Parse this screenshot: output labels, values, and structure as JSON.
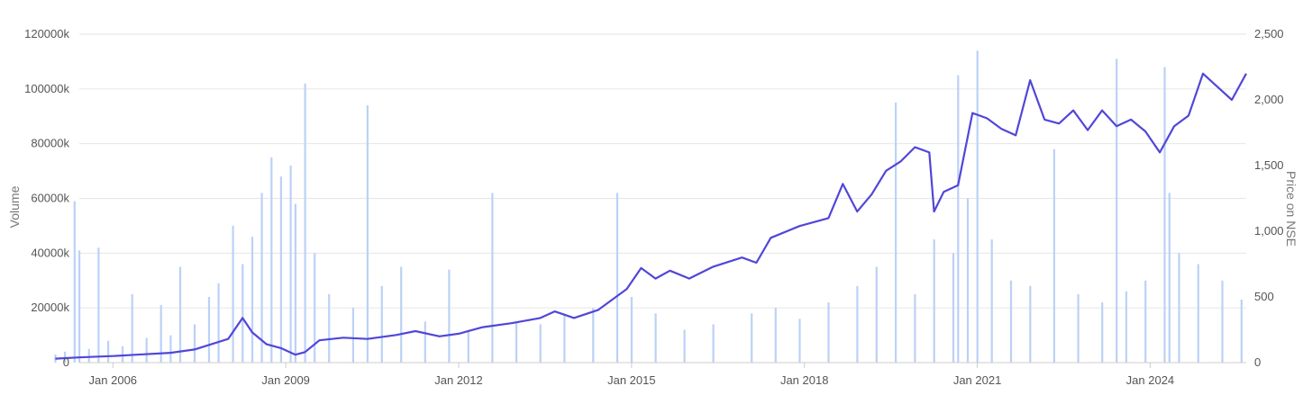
{
  "chart_data": {
    "type": "bar+line",
    "title": "",
    "grid": true,
    "legend": "none",
    "colors": {
      "volume": "#bcd1f7",
      "price": "#5146d8",
      "grid": "#e6e6e6",
      "axis": "#cccccc"
    },
    "x_axis": {
      "range": [
        "2005-01",
        "2025-12"
      ],
      "tick_labels": [
        "Jan 2006",
        "Jan 2009",
        "Jan 2012",
        "Jan 2015",
        "Jan 2018",
        "Jan 2021",
        "Jan 2024"
      ],
      "tick_dates": [
        "2006-01",
        "2009-01",
        "2012-01",
        "2015-01",
        "2018-01",
        "2021-01",
        "2024-01"
      ]
    },
    "y_left": {
      "label": "Volume",
      "ylim": [
        0,
        120000
      ],
      "tick_values": [
        0,
        20000,
        40000,
        60000,
        80000,
        100000,
        120000
      ],
      "tick_labels": [
        "0",
        "20000k",
        "40000k",
        "60000k",
        "80000k",
        "100000k",
        "120000k"
      ]
    },
    "y_right": {
      "label": "Price on NSE",
      "ylim": [
        0,
        2500
      ],
      "tick_values": [
        0,
        500,
        1000,
        1500,
        2000,
        2500
      ],
      "tick_labels": [
        "0",
        "500",
        "1,000",
        "1,500",
        "2,000",
        "2,500"
      ]
    },
    "series": [
      {
        "name": "Volume",
        "type": "bar",
        "unit": "thousands",
        "points": [
          [
            "2005-01",
            3000
          ],
          [
            "2005-03",
            4000
          ],
          [
            "2005-05",
            59000
          ],
          [
            "2005-06",
            41000
          ],
          [
            "2005-08",
            5000
          ],
          [
            "2005-10",
            42000
          ],
          [
            "2005-12",
            8000
          ],
          [
            "2006-03",
            6000
          ],
          [
            "2006-05",
            25000
          ],
          [
            "2006-08",
            9000
          ],
          [
            "2006-11",
            21000
          ],
          [
            "2007-01",
            10000
          ],
          [
            "2007-03",
            35000
          ],
          [
            "2007-06",
            14000
          ],
          [
            "2007-09",
            24000
          ],
          [
            "2007-11",
            29000
          ],
          [
            "2008-02",
            50000
          ],
          [
            "2008-04",
            36000
          ],
          [
            "2008-06",
            46000
          ],
          [
            "2008-08",
            62000
          ],
          [
            "2008-10",
            75000
          ],
          [
            "2008-12",
            68000
          ],
          [
            "2009-02",
            72000
          ],
          [
            "2009-03",
            58000
          ],
          [
            "2009-05",
            102000
          ],
          [
            "2009-07",
            40000
          ],
          [
            "2009-10",
            25000
          ],
          [
            "2010-03",
            20000
          ],
          [
            "2010-06",
            94000
          ],
          [
            "2010-09",
            28000
          ],
          [
            "2011-01",
            35000
          ],
          [
            "2011-06",
            15000
          ],
          [
            "2011-11",
            34000
          ],
          [
            "2012-03",
            12000
          ],
          [
            "2012-08",
            62000
          ],
          [
            "2013-01",
            15000
          ],
          [
            "2013-06",
            14000
          ],
          [
            "2013-11",
            18000
          ],
          [
            "2014-05",
            20000
          ],
          [
            "2014-10",
            62000
          ],
          [
            "2015-01",
            24000
          ],
          [
            "2015-06",
            18000
          ],
          [
            "2015-12",
            12000
          ],
          [
            "2016-06",
            14000
          ],
          [
            "2017-02",
            18000
          ],
          [
            "2017-07",
            20000
          ],
          [
            "2017-12",
            16000
          ],
          [
            "2018-06",
            22000
          ],
          [
            "2018-12",
            28000
          ],
          [
            "2019-04",
            35000
          ],
          [
            "2019-08",
            95000
          ],
          [
            "2019-12",
            25000
          ],
          [
            "2020-04",
            45000
          ],
          [
            "2020-08",
            40000
          ],
          [
            "2020-09",
            105000
          ],
          [
            "2020-11",
            60000
          ],
          [
            "2021-01",
            114000
          ],
          [
            "2021-04",
            45000
          ],
          [
            "2021-08",
            30000
          ],
          [
            "2021-12",
            28000
          ],
          [
            "2022-05",
            78000
          ],
          [
            "2022-10",
            25000
          ],
          [
            "2023-03",
            22000
          ],
          [
            "2023-06",
            111000
          ],
          [
            "2023-08",
            26000
          ],
          [
            "2023-12",
            30000
          ],
          [
            "2024-04",
            108000
          ],
          [
            "2024-05",
            62000
          ],
          [
            "2024-07",
            40000
          ],
          [
            "2024-11",
            36000
          ],
          [
            "2025-04",
            30000
          ],
          [
            "2025-08",
            23000
          ]
        ]
      },
      {
        "name": "Price on NSE",
        "type": "line",
        "points": [
          [
            "2005-01",
            30
          ],
          [
            "2005-06",
            40
          ],
          [
            "2006-01",
            50
          ],
          [
            "2006-06",
            60
          ],
          [
            "2007-01",
            75
          ],
          [
            "2007-06",
            100
          ],
          [
            "2008-01",
            180
          ],
          [
            "2008-04",
            340
          ],
          [
            "2008-06",
            230
          ],
          [
            "2008-09",
            140
          ],
          [
            "2008-12",
            110
          ],
          [
            "2009-03",
            60
          ],
          [
            "2009-05",
            80
          ],
          [
            "2009-08",
            170
          ],
          [
            "2010-01",
            190
          ],
          [
            "2010-06",
            180
          ],
          [
            "2010-12",
            210
          ],
          [
            "2011-04",
            240
          ],
          [
            "2011-09",
            200
          ],
          [
            "2012-01",
            220
          ],
          [
            "2012-06",
            270
          ],
          [
            "2012-12",
            300
          ],
          [
            "2013-06",
            340
          ],
          [
            "2013-09",
            390
          ],
          [
            "2014-01",
            340
          ],
          [
            "2014-06",
            400
          ],
          [
            "2014-12",
            560
          ],
          [
            "2015-03",
            720
          ],
          [
            "2015-06",
            640
          ],
          [
            "2015-09",
            700
          ],
          [
            "2016-01",
            640
          ],
          [
            "2016-06",
            730
          ],
          [
            "2016-12",
            800
          ],
          [
            "2017-03",
            760
          ],
          [
            "2017-06",
            950
          ],
          [
            "2017-12",
            1040
          ],
          [
            "2018-06",
            1100
          ],
          [
            "2018-09",
            1360
          ],
          [
            "2018-12",
            1150
          ],
          [
            "2019-03",
            1280
          ],
          [
            "2019-06",
            1460
          ],
          [
            "2019-09",
            1530
          ],
          [
            "2019-12",
            1640
          ],
          [
            "2020-03",
            1600
          ],
          [
            "2020-04",
            1150
          ],
          [
            "2020-06",
            1300
          ],
          [
            "2020-09",
            1350
          ],
          [
            "2020-12",
            1900
          ],
          [
            "2021-03",
            1860
          ],
          [
            "2021-06",
            1780
          ],
          [
            "2021-09",
            1730
          ],
          [
            "2021-12",
            2150
          ],
          [
            "2022-03",
            1850
          ],
          [
            "2022-06",
            1820
          ],
          [
            "2022-09",
            1920
          ],
          [
            "2022-12",
            1770
          ],
          [
            "2023-03",
            1920
          ],
          [
            "2023-06",
            1800
          ],
          [
            "2023-09",
            1850
          ],
          [
            "2023-12",
            1760
          ],
          [
            "2024-03",
            1600
          ],
          [
            "2024-06",
            1800
          ],
          [
            "2024-09",
            1880
          ],
          [
            "2024-12",
            2200
          ],
          [
            "2025-03",
            2100
          ],
          [
            "2025-06",
            2000
          ],
          [
            "2025-09",
            2200
          ]
        ]
      }
    ]
  }
}
